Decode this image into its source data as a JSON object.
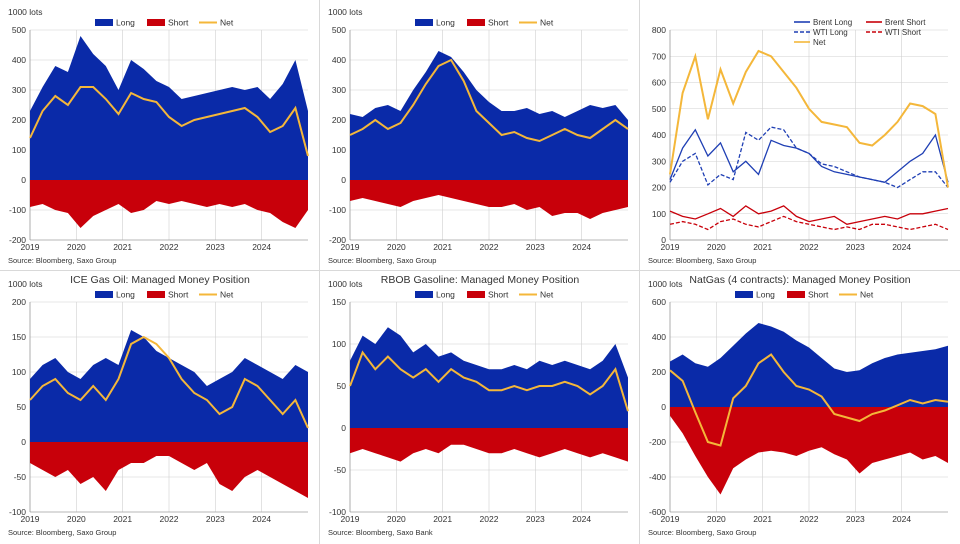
{
  "colors": {
    "long": "#0a2aa8",
    "short": "#c8000a",
    "net": "#f4b73a",
    "brent": "#1f3fb4",
    "wti_short": "#c8000a",
    "grid": "#d0d0d0",
    "text": "#333333"
  },
  "chart_data": [
    {
      "type": "area",
      "title": "",
      "ylabel": "1000 lots",
      "ylim": [
        -200,
        500
      ],
      "yticks": [
        -200,
        -100,
        0,
        100,
        200,
        300,
        400,
        500
      ],
      "xticks": [
        "2019",
        "2020",
        "2021",
        "2022",
        "2023",
        "2024"
      ],
      "legend": [
        "Long",
        "Short",
        "Net"
      ],
      "source": "Source: Bloomberg, Saxo Group",
      "series": [
        {
          "name": "Long",
          "values": [
            230,
            310,
            380,
            360,
            480,
            420,
            380,
            300,
            400,
            370,
            330,
            310,
            270,
            280,
            290,
            300,
            310,
            300,
            310,
            270,
            320,
            400,
            230
          ]
        },
        {
          "name": "Short",
          "values": [
            -90,
            -80,
            -100,
            -110,
            -160,
            -120,
            -100,
            -80,
            -110,
            -100,
            -70,
            -80,
            -70,
            -80,
            -90,
            -80,
            -90,
            -80,
            -100,
            -110,
            -140,
            -160,
            -100
          ]
        },
        {
          "name": "Net",
          "values": [
            140,
            230,
            280,
            250,
            310,
            310,
            270,
            220,
            290,
            270,
            260,
            210,
            180,
            200,
            210,
            220,
            230,
            240,
            210,
            160,
            180,
            240,
            80
          ]
        }
      ]
    },
    {
      "type": "area",
      "title": "",
      "ylabel": "1000 lots",
      "ylim": [
        -200,
        500
      ],
      "yticks": [
        -200,
        -100,
        0,
        100,
        200,
        300,
        400,
        500
      ],
      "xticks": [
        "2019",
        "2020",
        "2021",
        "2022",
        "2023",
        "2024"
      ],
      "legend": [
        "Long",
        "Short",
        "Net"
      ],
      "source": "Source: Bloomberg, Saxo Group",
      "series": [
        {
          "name": "Long",
          "values": [
            220,
            210,
            240,
            250,
            230,
            300,
            360,
            430,
            410,
            360,
            300,
            260,
            230,
            230,
            240,
            220,
            230,
            210,
            230,
            250,
            240,
            250,
            200
          ]
        },
        {
          "name": "Short",
          "values": [
            -70,
            -60,
            -70,
            -80,
            -90,
            -70,
            -60,
            -50,
            -60,
            -70,
            -80,
            -90,
            -90,
            -80,
            -100,
            -90,
            -120,
            -110,
            -110,
            -130,
            -110,
            -100,
            -90
          ]
        },
        {
          "name": "Net",
          "values": [
            150,
            170,
            200,
            170,
            190,
            250,
            320,
            380,
            400,
            330,
            230,
            190,
            150,
            160,
            140,
            130,
            150,
            170,
            150,
            140,
            170,
            200,
            170
          ]
        }
      ]
    },
    {
      "type": "line",
      "title": "",
      "ylabel": "",
      "ylim": [
        0,
        800
      ],
      "yticks": [
        0,
        100,
        200,
        300,
        400,
        500,
        600,
        700,
        800
      ],
      "xticks": [
        "2019",
        "2020",
        "2021",
        "2022",
        "2023",
        "2024"
      ],
      "legend": [
        "Brent Long",
        "Brent Short",
        "WTI Long",
        "WTI Short",
        "Net"
      ],
      "source": "Source: Bloomberg, Saxo Group",
      "series": [
        {
          "name": "Brent Long",
          "values": [
            230,
            350,
            420,
            320,
            370,
            260,
            300,
            250,
            380,
            360,
            350,
            330,
            280,
            260,
            250,
            240,
            230,
            220,
            260,
            300,
            330,
            400,
            220
          ]
        },
        {
          "name": "Brent Short",
          "values": [
            110,
            90,
            80,
            100,
            120,
            90,
            130,
            100,
            110,
            130,
            90,
            70,
            80,
            90,
            60,
            70,
            80,
            90,
            80,
            100,
            100,
            110,
            120
          ]
        },
        {
          "name": "WTI Long",
          "values": [
            220,
            300,
            330,
            210,
            250,
            230,
            410,
            380,
            430,
            420,
            350,
            330,
            290,
            280,
            260,
            240,
            230,
            220,
            200,
            230,
            260,
            260,
            200
          ]
        },
        {
          "name": "WTI Short",
          "values": [
            60,
            70,
            60,
            40,
            70,
            80,
            60,
            50,
            70,
            90,
            70,
            60,
            50,
            40,
            50,
            40,
            60,
            60,
            50,
            40,
            50,
            60,
            40
          ]
        },
        {
          "name": "Net",
          "values": [
            250,
            560,
            700,
            460,
            650,
            520,
            640,
            720,
            700,
            640,
            580,
            500,
            450,
            440,
            430,
            370,
            360,
            400,
            450,
            520,
            510,
            480,
            200
          ]
        }
      ]
    },
    {
      "type": "area",
      "title": "ICE Gas Oil: Managed Money Position",
      "ylabel": "1000 lots",
      "ylim": [
        -100,
        200
      ],
      "yticks": [
        -100,
        -50,
        0,
        50,
        100,
        150,
        200
      ],
      "xticks": [
        "2019",
        "2020",
        "2021",
        "2022",
        "2023",
        "2024"
      ],
      "legend": [
        "Long",
        "Short",
        "Net"
      ],
      "source": "Source: Bloomberg, Saxo Group",
      "series": [
        {
          "name": "Long",
          "values": [
            90,
            110,
            120,
            100,
            90,
            110,
            120,
            110,
            160,
            150,
            130,
            120,
            110,
            100,
            80,
            90,
            100,
            120,
            110,
            100,
            90,
            110,
            100
          ]
        },
        {
          "name": "Short",
          "values": [
            -30,
            -40,
            -50,
            -40,
            -60,
            -50,
            -70,
            -40,
            -30,
            -30,
            -20,
            -20,
            -30,
            -40,
            -30,
            -60,
            -70,
            -50,
            -40,
            -50,
            -60,
            -70,
            -80
          ]
        },
        {
          "name": "Net",
          "values": [
            60,
            80,
            90,
            70,
            60,
            80,
            60,
            90,
            140,
            150,
            140,
            120,
            90,
            70,
            60,
            40,
            50,
            90,
            80,
            60,
            40,
            60,
            20
          ]
        }
      ]
    },
    {
      "type": "area",
      "title": "RBOB Gasoline: Managed Money Position",
      "ylabel": "1000 lots",
      "ylim": [
        -100,
        150
      ],
      "yticks": [
        -100,
        -50,
        0,
        50,
        100,
        150
      ],
      "xticks": [
        "2019",
        "2020",
        "2021",
        "2022",
        "2023",
        "2024"
      ],
      "legend": [
        "Long",
        "Short",
        "Net"
      ],
      "source": "Source: Bloomberg, Saxo Bank",
      "series": [
        {
          "name": "Long",
          "values": [
            80,
            110,
            100,
            120,
            110,
            90,
            100,
            85,
            90,
            80,
            75,
            70,
            70,
            75,
            70,
            80,
            75,
            80,
            75,
            70,
            80,
            100,
            60
          ]
        },
        {
          "name": "Short",
          "values": [
            -30,
            -25,
            -30,
            -35,
            -40,
            -30,
            -25,
            -30,
            -20,
            -20,
            -25,
            -30,
            -30,
            -25,
            -30,
            -35,
            -30,
            -25,
            -30,
            -35,
            -30,
            -35,
            -40
          ]
        },
        {
          "name": "Net",
          "values": [
            50,
            90,
            70,
            85,
            70,
            60,
            70,
            55,
            70,
            60,
            55,
            45,
            45,
            50,
            45,
            50,
            50,
            55,
            50,
            40,
            50,
            70,
            20
          ]
        }
      ]
    },
    {
      "type": "area",
      "title": "NatGas (4 contracts): Managed Money Position",
      "ylabel": "1000 lots",
      "ylim": [
        -600,
        600
      ],
      "yticks": [
        -600,
        -400,
        -200,
        0,
        200,
        400,
        600
      ],
      "xticks": [
        "2019",
        "2020",
        "2021",
        "2022",
        "2023",
        "2024"
      ],
      "legend": [
        "Long",
        "Short",
        "Net"
      ],
      "source": "Source: Bloomberg, Saxo Group",
      "series": [
        {
          "name": "Long",
          "values": [
            260,
            300,
            250,
            230,
            280,
            350,
            420,
            480,
            460,
            430,
            380,
            340,
            280,
            220,
            200,
            210,
            250,
            280,
            300,
            310,
            320,
            330,
            350
          ]
        },
        {
          "name": "Short",
          "values": [
            -50,
            -150,
            -280,
            -400,
            -500,
            -350,
            -300,
            -260,
            -250,
            -260,
            -280,
            -250,
            -230,
            -270,
            -300,
            -380,
            -320,
            -300,
            -280,
            -260,
            -300,
            -280,
            -320
          ]
        },
        {
          "name": "Net",
          "values": [
            210,
            150,
            -30,
            -200,
            -220,
            50,
            120,
            250,
            300,
            200,
            120,
            100,
            60,
            -40,
            -60,
            -80,
            -40,
            -20,
            10,
            40,
            20,
            40,
            30
          ]
        }
      ]
    }
  ]
}
